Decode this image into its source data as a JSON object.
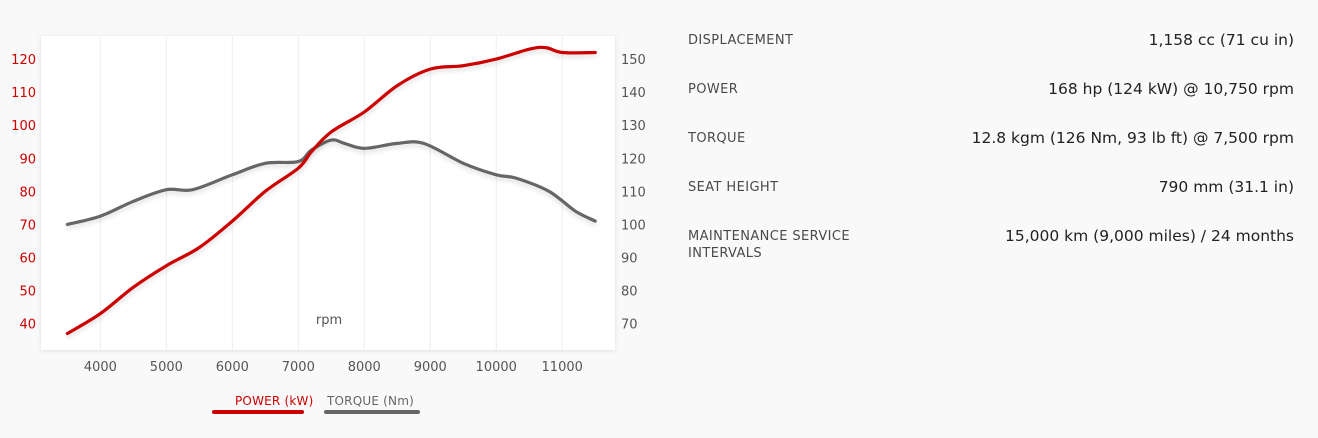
{
  "chart_data": {
    "type": "line",
    "xlabel": "rpm",
    "x_ticks": [
      4000,
      5000,
      6000,
      7000,
      8000,
      9000,
      10000,
      11000
    ],
    "xlim": [
      3100,
      11800
    ],
    "y_left_ticks": [
      40,
      50,
      60,
      70,
      80,
      90,
      100,
      110,
      120
    ],
    "y_left_lim": [
      32,
      127
    ],
    "y_right_ticks": [
      70,
      80,
      90,
      100,
      110,
      120,
      130,
      140,
      150
    ],
    "y_right_lim": [
      62,
      157
    ],
    "grid": "vertical",
    "legend_position": "bottom",
    "series": [
      {
        "name": "POWER (kW)",
        "axis": "left",
        "color": "#cc0000",
        "x": [
          3500,
          4000,
          4500,
          5000,
          5500,
          6000,
          6500,
          7000,
          7200,
          7500,
          8000,
          8500,
          9000,
          9500,
          10000,
          10500,
          10750,
          11000,
          11500
        ],
        "y": [
          37,
          43,
          51,
          57.5,
          63,
          71,
          80,
          87,
          92,
          98,
          104,
          112,
          117,
          118,
          120,
          123,
          123.5,
          122,
          122
        ]
      },
      {
        "name": "TORQUE (Nm)",
        "axis": "right",
        "color": "#666666",
        "x": [
          3500,
          4000,
          4500,
          5000,
          5400,
          6000,
          6500,
          7000,
          7200,
          7500,
          7700,
          8000,
          8500,
          8900,
          9500,
          10000,
          10300,
          10800,
          11200,
          11500
        ],
        "y": [
          100,
          102.5,
          107,
          110.5,
          110.5,
          115,
          118.5,
          119,
          122.5,
          125.5,
          124.5,
          123,
          124.5,
          124.5,
          118.5,
          115,
          114,
          110,
          104,
          101
        ]
      }
    ]
  },
  "specs": [
    {
      "label": "DISPLACEMENT",
      "value": "1,158 cc (71 cu in)"
    },
    {
      "label": "POWER",
      "value": "168 hp (124 kW) @ 10,750 rpm"
    },
    {
      "label": "TORQUE",
      "value": "12.8 kgm (126 Nm, 93 lb ft) @ 7,500 rpm"
    },
    {
      "label": "SEAT HEIGHT",
      "value": "790 mm (31.1 in)"
    },
    {
      "label": "MAINTENANCE SERVICE INTERVALS",
      "value": "15,000 km (9,000 miles) / 24 months"
    }
  ]
}
